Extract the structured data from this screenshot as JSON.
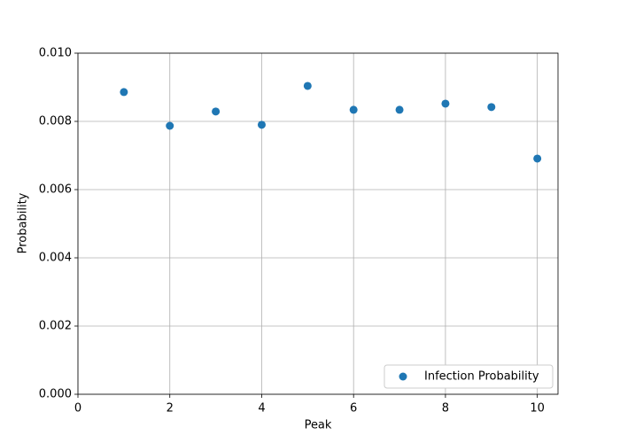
{
  "chart_data": {
    "type": "scatter",
    "x_label": "Peak",
    "y_label": "Probability",
    "x": [
      1,
      2,
      3,
      4,
      5,
      6,
      7,
      8,
      9,
      10
    ],
    "series": [
      {
        "name": "Infection Probability",
        "color": "#1f77b4",
        "values": [
          0.00886,
          0.00787,
          0.00829,
          0.0079,
          0.00904,
          0.00834,
          0.00834,
          0.00852,
          0.00842,
          0.00691
        ]
      }
    ],
    "xlim": [
      0,
      10.45
    ],
    "ylim": [
      0,
      0.01
    ],
    "xticks": [
      0,
      2,
      4,
      6,
      8,
      10
    ],
    "yticks": [
      {
        "value": 0,
        "label": "0.000"
      },
      {
        "value": 0.002,
        "label": "0.002"
      },
      {
        "value": 0.004,
        "label": "0.004"
      },
      {
        "value": 0.006,
        "label": "0.006"
      },
      {
        "value": 0.008,
        "label": "0.008"
      },
      {
        "value": 0.01,
        "label": "0.010"
      }
    ],
    "grid": true,
    "legend": "lower right"
  }
}
